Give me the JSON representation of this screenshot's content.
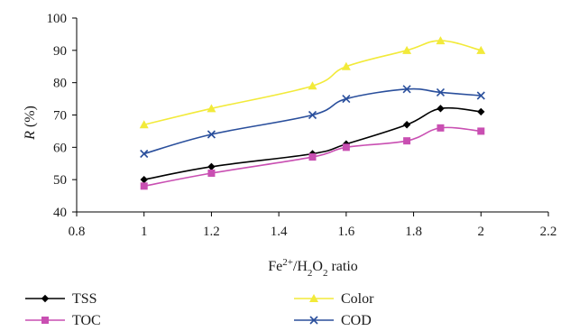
{
  "chart_data": {
    "type": "line",
    "x_title": {
      "base": "Fe",
      "sup": "2+",
      "mid": "/H",
      "sub1": "2",
      "mid2": "O",
      "sub2": "2",
      "tail": " ratio"
    },
    "y_title": {
      "italic": "R",
      "rest": " (%)"
    },
    "xlim": [
      0.8,
      2.2
    ],
    "ylim": [
      40,
      100
    ],
    "x_ticks": [
      "0.8",
      "1",
      "1.2",
      "1.4",
      "1.6",
      "1.8",
      "2",
      "2.2"
    ],
    "y_ticks": [
      "40",
      "50",
      "60",
      "70",
      "80",
      "90",
      "100"
    ],
    "grid": false,
    "legend_position": "bottom",
    "series": [
      {
        "name": "TSS",
        "color": "#000000",
        "marker": "diamond",
        "x": [
          1,
          1.2,
          1.5,
          1.6,
          1.78,
          1.88,
          2
        ],
        "y": [
          50,
          54,
          58,
          61,
          67,
          72,
          71
        ]
      },
      {
        "name": "TOC",
        "color": "#c94fb2",
        "marker": "square",
        "x": [
          1,
          1.2,
          1.5,
          1.6,
          1.78,
          1.88,
          2
        ],
        "y": [
          48,
          52,
          57,
          60,
          62,
          66,
          65
        ]
      },
      {
        "name": "Color",
        "color": "#f2ea3a",
        "marker": "triangle",
        "x": [
          1,
          1.2,
          1.5,
          1.6,
          1.78,
          1.88,
          2
        ],
        "y": [
          67,
          72,
          79,
          85,
          90,
          93,
          90
        ]
      },
      {
        "name": "COD",
        "color": "#2a4f9c",
        "marker": "x",
        "x": [
          1,
          1.2,
          1.5,
          1.6,
          1.78,
          1.88,
          2
        ],
        "y": [
          58,
          64,
          70,
          75,
          78,
          77,
          76
        ]
      }
    ]
  }
}
